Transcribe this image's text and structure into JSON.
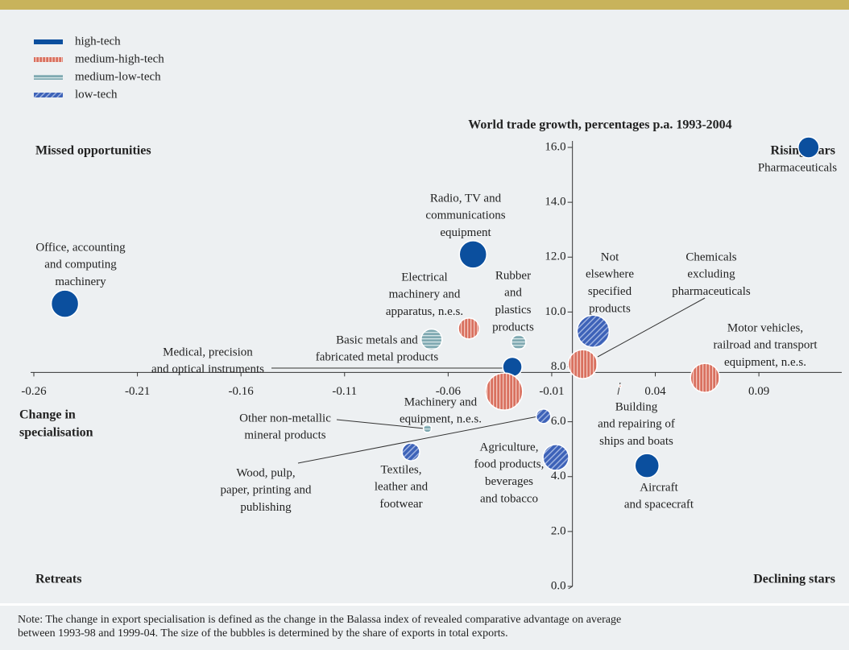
{
  "chart_data": {
    "type": "scatter",
    "y_label": "World trade growth, percentages p.a. 1993-2004",
    "x_label": [
      "Change in",
      "specialisation"
    ],
    "quadrants": [
      "Missed opportunities",
      "Rising stars",
      "Retreats",
      "Declining stars"
    ],
    "xlim": [
      -0.26,
      0.13
    ],
    "ylim": [
      0,
      16
    ],
    "x_axis_at": 7.8,
    "y_axis_at": 0,
    "xticks": [
      -0.26,
      -0.21,
      -0.16,
      -0.11,
      -0.06,
      -0.01,
      0.04,
      0.09
    ],
    "yticks": [
      {
        "value": 0,
        "label": "0.0"
      },
      {
        "value": 2,
        "label": "2.0"
      },
      {
        "value": 4,
        "label": "4.0"
      },
      {
        "value": 6,
        "label": "6.0"
      },
      {
        "value": 8,
        "label": "8.0"
      },
      {
        "value": 10,
        "label": "10.0"
      },
      {
        "value": 12,
        "label": "12.0"
      },
      {
        "value": 14,
        "label": "14.0"
      },
      {
        "value": 16,
        "label": "16.0"
      }
    ],
    "series": [
      {
        "name": "high-tech",
        "color": "#0b4f9e",
        "pattern": "solid",
        "labels": [
          [
            "Pharmaceuticals"
          ],
          [
            "Office, accounting",
            "and computing",
            "machinery"
          ],
          [
            "Radio, TV and",
            "communications",
            "equipment"
          ],
          [
            "Medical, precision",
            "and optical instruments"
          ],
          [
            "Aircraft",
            "and spacecraft"
          ]
        ],
        "x": [
          0.114,
          -0.245,
          -0.048,
          -0.029,
          0.036
        ],
        "values": [
          16.0,
          10.3,
          12.1,
          8.0,
          4.4
        ],
        "sizes": [
          13,
          17,
          17,
          12,
          15
        ]
      },
      {
        "name": "medium-high-tech",
        "color": "#d9705f",
        "pattern": "vertical",
        "labels": [
          [
            "Electrical",
            "machinery and",
            "apparatus, n.e.s."
          ],
          [
            "Machinery and",
            "equipment, n.e.s."
          ],
          [
            "Chemicals",
            "excluding",
            "pharmaceuticals"
          ],
          [
            "Motor vehicles,",
            "railroad and transport",
            "equipment, n.e.s."
          ],
          [
            "Building",
            "and repairing of",
            "ships and boats"
          ]
        ],
        "x": [
          -0.05,
          -0.033,
          0.005,
          0.064,
          0.023
        ],
        "values": [
          9.4,
          7.1,
          8.1,
          7.6,
          7.3
        ],
        "sizes": [
          13,
          23,
          18,
          18,
          1.5
        ]
      },
      {
        "name": "medium-low-tech",
        "color": "#7fa9b1",
        "pattern": "horizontal",
        "labels": [
          [
            "Rubber",
            "and",
            "plastics",
            "products"
          ],
          [
            "Basic metals and",
            "fabricated metal products"
          ],
          [
            "Other non-metallic",
            "mineral products"
          ]
        ],
        "x": [
          -0.026,
          -0.068,
          -0.07
        ],
        "values": [
          8.9,
          9.0,
          5.75
        ],
        "sizes": [
          9,
          13,
          5
        ]
      },
      {
        "name": "low-tech",
        "color": "#3d62b8",
        "pattern": "diagonal",
        "labels": [
          [
            "Not",
            "elsewhere",
            "specified",
            "products"
          ],
          [
            "Agriculture,",
            "food products,",
            "beverages",
            "and tobacco"
          ],
          [
            "Wood, pulp,",
            "paper, printing and",
            "publishing"
          ],
          [
            "Textiles,",
            "leather and",
            "footwear"
          ]
        ],
        "x": [
          0.01,
          -0.008,
          -0.014,
          -0.078
        ],
        "values": [
          9.3,
          4.7,
          6.2,
          4.9
        ],
        "sizes": [
          20,
          16,
          9,
          11
        ]
      }
    ],
    "note": [
      "Note: The change in export specialisation is defined as the change in the Balassa index of revealed comparative advantage on average",
      "between 1993-98 and 1999-04. The size of the bubbles is determined by the share of exports in total exports."
    ]
  }
}
